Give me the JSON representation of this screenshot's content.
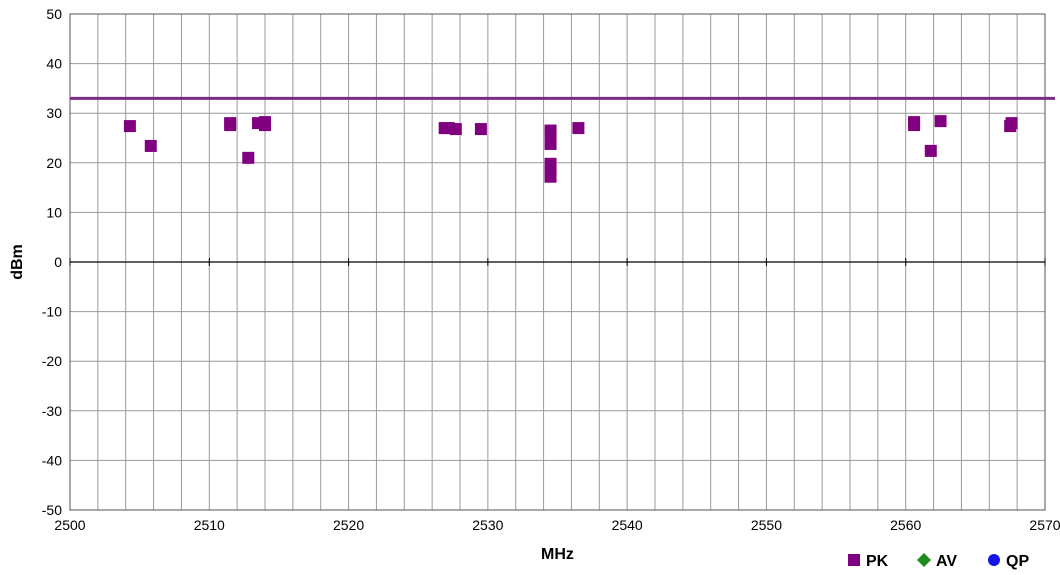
{
  "chart_data": {
    "type": "scatter",
    "title": "",
    "xlabel": "MHz",
    "ylabel": "dBm",
    "xlim": [
      2500,
      2570
    ],
    "ylim": [
      -50,
      50
    ],
    "x_ticks": [
      2500,
      2510,
      2520,
      2530,
      2540,
      2550,
      2560,
      2570
    ],
    "y_ticks": [
      -50,
      -40,
      -30,
      -20,
      -10,
      0,
      10,
      20,
      30,
      40,
      50
    ],
    "x_minor_step": 2,
    "grid": true,
    "legend_position": "bottom-right",
    "limit_line": {
      "value": 33,
      "color": "#7B2C83"
    },
    "series": [
      {
        "name": "PK",
        "marker": "square",
        "color": "#800080",
        "points": [
          [
            2504.3,
            27.4
          ],
          [
            2505.8,
            23.4
          ],
          [
            2511.5,
            27.6
          ],
          [
            2511.5,
            28.0
          ],
          [
            2512.8,
            21.0
          ],
          [
            2513.5,
            28.0
          ],
          [
            2514.0,
            27.6
          ],
          [
            2514.0,
            28.2
          ],
          [
            2526.9,
            27.0
          ],
          [
            2527.2,
            27.0
          ],
          [
            2527.7,
            26.8
          ],
          [
            2529.5,
            26.8
          ],
          [
            2534.5,
            26.5
          ],
          [
            2534.5,
            25.8
          ],
          [
            2534.5,
            23.8
          ],
          [
            2534.5,
            19.8
          ],
          [
            2534.5,
            18.5
          ],
          [
            2534.5,
            17.2
          ],
          [
            2536.5,
            27.0
          ],
          [
            2560.6,
            27.6
          ],
          [
            2560.6,
            28.2
          ],
          [
            2561.8,
            22.4
          ],
          [
            2562.5,
            28.4
          ],
          [
            2567.5,
            27.4
          ],
          [
            2567.6,
            28.0
          ]
        ]
      },
      {
        "name": "AV",
        "marker": "diamond",
        "color": "#1E8C1E",
        "points": []
      },
      {
        "name": "QP",
        "marker": "circle",
        "color": "#1414E6",
        "points": []
      }
    ]
  }
}
